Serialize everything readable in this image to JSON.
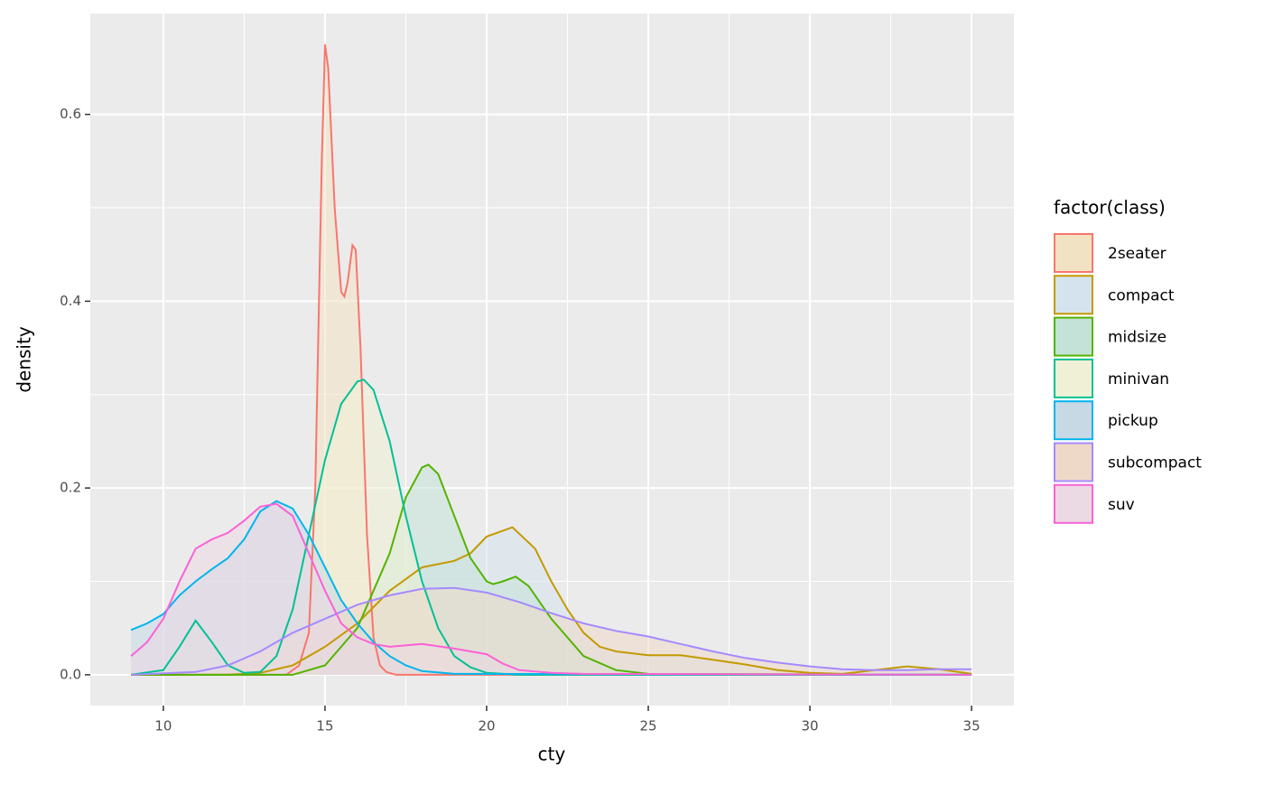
{
  "chart_data": {
    "type": "density",
    "x_label": "cty",
    "y_label": "density",
    "legend_title": "factor(class)",
    "legend_position": "right",
    "xlim": [
      7.74,
      36.31
    ],
    "ylim": [
      -0.033,
      0.708
    ],
    "xticks": [
      10,
      15,
      20,
      25,
      30,
      35
    ],
    "yticks": [
      {
        "value": 0,
        "label": "0.0"
      },
      {
        "value": 0.2,
        "label": "0.2"
      },
      {
        "value": 0.4,
        "label": "0.4"
      },
      {
        "value": 0.6,
        "label": "0.6"
      }
    ],
    "x_minor_ticks": [
      12.5,
      17.5,
      22.5,
      27.5,
      32.5
    ],
    "y_minor_ticks": [
      0.1,
      0.3,
      0.5
    ],
    "grid": true,
    "series": [
      {
        "name": "2seater",
        "color": "#F8766D",
        "fill": "#F2E2C4",
        "x": [
          9,
          13.8,
          14.2,
          14.5,
          14.7,
          14.9,
          15,
          15.1,
          15.3,
          15.5,
          15.6,
          15.7,
          15.85,
          15.95,
          16.1,
          16.3,
          16.5,
          16.7,
          16.9,
          17.2,
          35
        ],
        "values": [
          0,
          0,
          0.01,
          0.045,
          0.2,
          0.55,
          0.675,
          0.65,
          0.5,
          0.41,
          0.405,
          0.42,
          0.46,
          0.455,
          0.35,
          0.15,
          0.04,
          0.01,
          0.003,
          0,
          0
        ]
      },
      {
        "name": "compact",
        "color": "#C49A00",
        "fill": "#D5E3EE",
        "x": [
          9,
          12,
          13,
          14,
          15,
          16,
          17,
          18,
          19,
          19.5,
          20,
          20.8,
          21.5,
          22,
          22.5,
          23,
          23.5,
          24,
          25,
          26,
          27,
          28,
          29,
          30,
          31,
          32,
          33,
          34,
          35
        ],
        "values": [
          0,
          0,
          0.002,
          0.01,
          0.03,
          0.055,
          0.09,
          0.115,
          0.122,
          0.13,
          0.148,
          0.158,
          0.135,
          0.1,
          0.07,
          0.045,
          0.03,
          0.025,
          0.021,
          0.021,
          0.016,
          0.011,
          0.005,
          0.002,
          0.001,
          0.005,
          0.009,
          0.006,
          0.001
        ]
      },
      {
        "name": "midsize",
        "color": "#53B400",
        "fill": "#C4E2D7",
        "x": [
          9,
          14,
          15,
          16,
          17,
          17.5,
          18,
          18.2,
          18.5,
          19,
          19.5,
          20,
          20.2,
          20.5,
          20.9,
          21.3,
          22,
          22.5,
          23,
          24,
          25,
          35
        ],
        "values": [
          0,
          0,
          0.01,
          0.05,
          0.13,
          0.19,
          0.222,
          0.225,
          0.215,
          0.17,
          0.125,
          0.1,
          0.097,
          0.1,
          0.105,
          0.095,
          0.06,
          0.04,
          0.02,
          0.005,
          0.001,
          0
        ]
      },
      {
        "name": "minivan",
        "color": "#00C094",
        "fill": "#F0F0D6",
        "x": [
          9,
          10,
          10.5,
          11,
          11.5,
          12,
          12.5,
          13,
          13.5,
          14,
          14.5,
          15,
          15.5,
          16,
          16.2,
          16.5,
          17,
          17.5,
          18,
          18.5,
          19,
          19.5,
          20,
          21,
          35
        ],
        "values": [
          0,
          0.005,
          0.03,
          0.058,
          0.035,
          0.01,
          0.002,
          0.003,
          0.02,
          0.07,
          0.15,
          0.23,
          0.29,
          0.314,
          0.316,
          0.305,
          0.25,
          0.17,
          0.1,
          0.05,
          0.02,
          0.008,
          0.002,
          0,
          0
        ]
      },
      {
        "name": "pickup",
        "color": "#00B6EB",
        "fill": "#C6D9E5",
        "x": [
          9,
          9.5,
          10,
          10.5,
          11,
          11.5,
          12,
          12.5,
          13,
          13.5,
          14,
          14.5,
          15,
          15.5,
          16,
          16.5,
          17,
          17.5,
          18,
          19,
          35
        ],
        "values": [
          0.048,
          0.055,
          0.065,
          0.085,
          0.1,
          0.113,
          0.125,
          0.145,
          0.175,
          0.186,
          0.178,
          0.15,
          0.115,
          0.08,
          0.055,
          0.035,
          0.02,
          0.01,
          0.004,
          0.001,
          0
        ]
      },
      {
        "name": "subcompact",
        "color": "#A58AFF",
        "fill": "#EED8C8",
        "x": [
          9,
          11,
          12,
          13,
          14,
          15,
          16,
          17,
          18,
          19,
          20,
          21,
          22,
          23,
          24,
          25,
          26,
          27,
          28,
          29,
          30,
          31,
          32,
          33,
          34,
          35
        ],
        "values": [
          0,
          0.003,
          0.01,
          0.025,
          0.045,
          0.06,
          0.075,
          0.085,
          0.092,
          0.093,
          0.088,
          0.078,
          0.066,
          0.055,
          0.047,
          0.041,
          0.033,
          0.025,
          0.018,
          0.013,
          0.009,
          0.006,
          0.005,
          0.005,
          0.006,
          0.006
        ]
      },
      {
        "name": "suv",
        "color": "#FB61D7",
        "fill": "#EBD9E3",
        "x": [
          9,
          9.5,
          10,
          10.5,
          11,
          11.5,
          12,
          12.5,
          13,
          13.5,
          14,
          14.5,
          15,
          15.5,
          16,
          16.5,
          17,
          18,
          19,
          20,
          20.5,
          21,
          22,
          23,
          35
        ],
        "values": [
          0.02,
          0.035,
          0.06,
          0.1,
          0.135,
          0.145,
          0.152,
          0.165,
          0.18,
          0.183,
          0.17,
          0.13,
          0.09,
          0.055,
          0.04,
          0.033,
          0.03,
          0.033,
          0.028,
          0.022,
          0.012,
          0.005,
          0.002,
          0.001,
          0
        ]
      }
    ]
  }
}
